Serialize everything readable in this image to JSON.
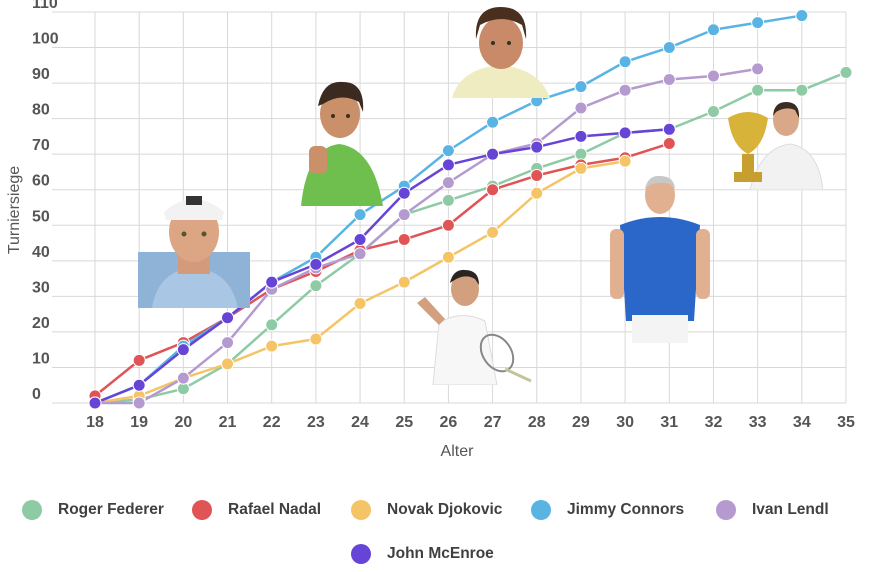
{
  "chart_data": {
    "type": "line",
    "title": "",
    "xlabel": "Alter",
    "ylabel": "Turniersiege",
    "x": [
      18,
      19,
      20,
      21,
      22,
      23,
      24,
      25,
      26,
      27,
      28,
      29,
      30,
      31,
      32,
      33,
      34,
      35
    ],
    "y_ticks": [
      0,
      10,
      20,
      30,
      40,
      50,
      60,
      70,
      80,
      90,
      100,
      110
    ],
    "xlim": [
      18,
      35
    ],
    "ylim": [
      0,
      110
    ],
    "grid": true,
    "legend_position": "bottom",
    "series": [
      {
        "name": "Roger Federer",
        "color": "#8ecba5",
        "values": [
          0,
          1,
          4,
          11,
          22,
          33,
          42,
          53,
          57,
          61,
          66,
          70,
          76,
          77,
          82,
          88,
          88,
          93
        ]
      },
      {
        "name": "Rafael Nadal",
        "color": "#e05456",
        "values": [
          2,
          12,
          17,
          24,
          32,
          37,
          43,
          46,
          50,
          60,
          64,
          67,
          69,
          73,
          null,
          null,
          null,
          null
        ]
      },
      {
        "name": "Novak Djokovic",
        "color": "#f5c466",
        "values": [
          0,
          2,
          7,
          11,
          16,
          18,
          28,
          34,
          41,
          48,
          59,
          66,
          68,
          null,
          null,
          null,
          null,
          null
        ]
      },
      {
        "name": "Jimmy Connors",
        "color": "#5ab4e3",
        "values": [
          0,
          5,
          16,
          24,
          34,
          41,
          53,
          61,
          71,
          79,
          85,
          89,
          96,
          100,
          105,
          107,
          109,
          null
        ]
      },
      {
        "name": "Ivan Lendl",
        "color": "#b59ad0",
        "values": [
          0,
          0,
          7,
          17,
          32,
          38,
          42,
          53,
          62,
          70,
          73,
          83,
          88,
          91,
          92,
          94,
          null,
          null
        ]
      },
      {
        "name": "John McEnroe",
        "color": "#6644d6",
        "values": [
          0,
          5,
          15,
          24,
          34,
          39,
          46,
          59,
          67,
          70,
          72,
          75,
          76,
          77,
          null,
          null,
          null,
          null
        ]
      }
    ]
  }
}
